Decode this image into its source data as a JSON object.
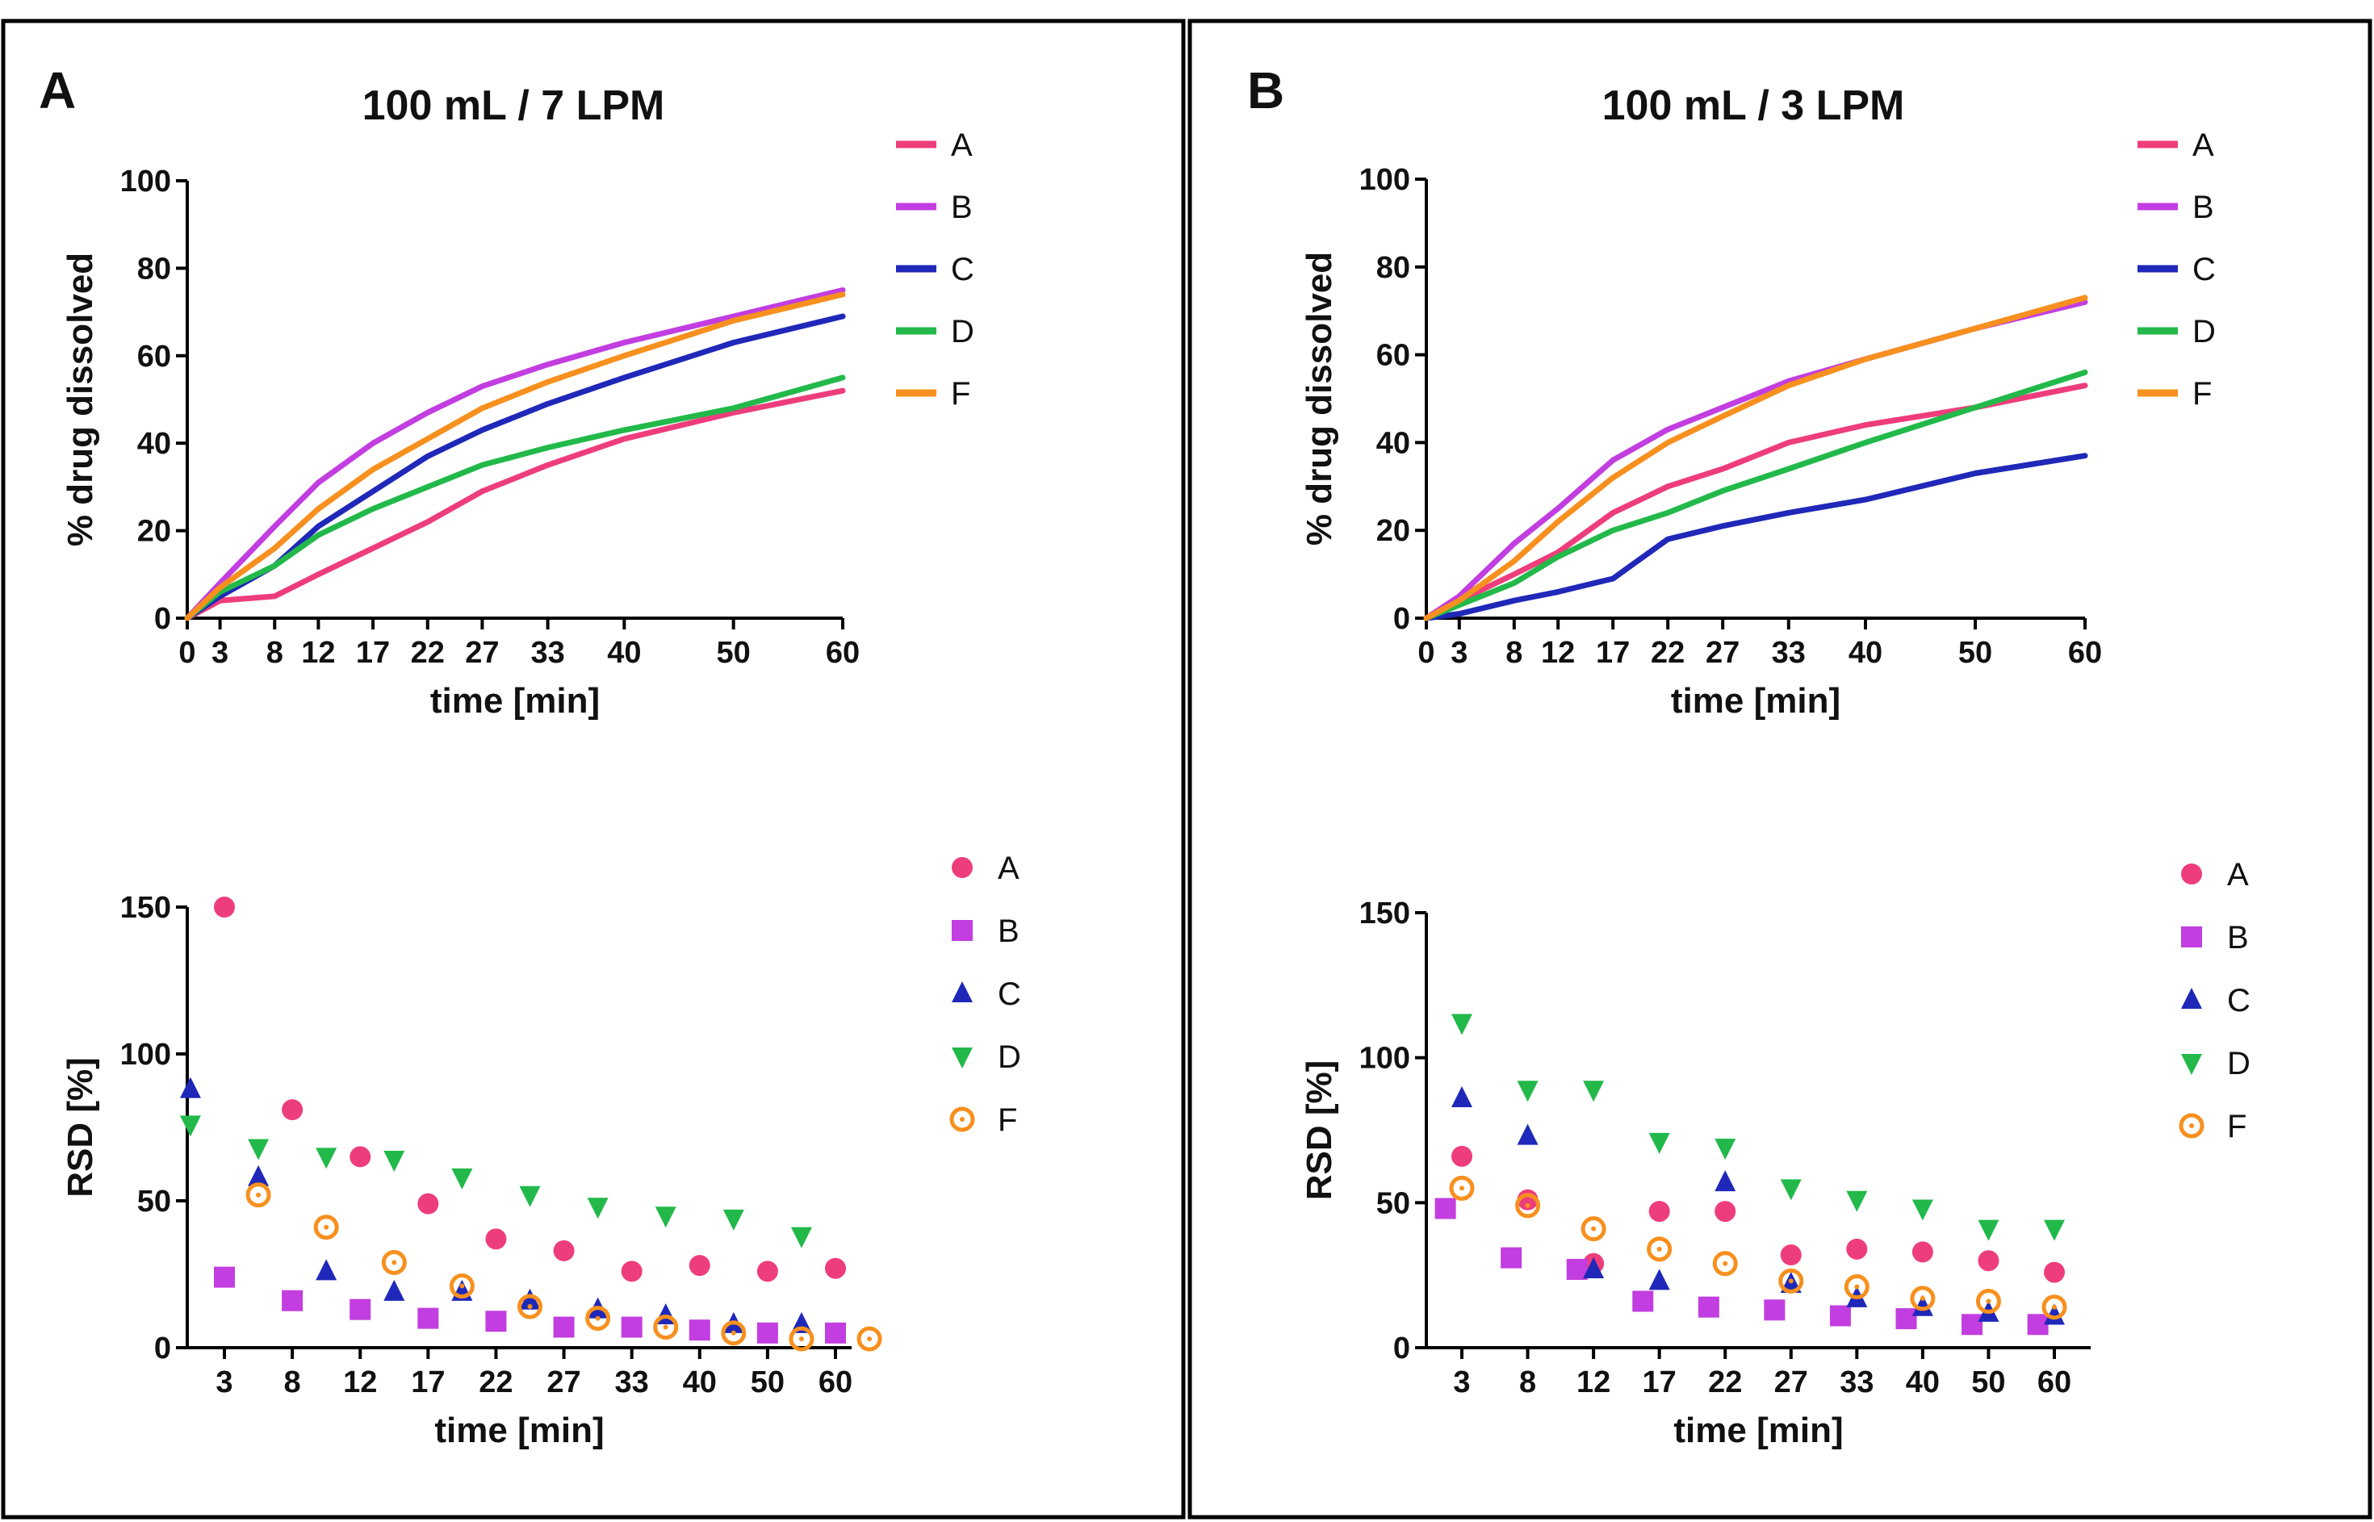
{
  "figure": {
    "panels": [
      {
        "letter": "A",
        "title": "100 mL / 7 LPM"
      },
      {
        "letter": "B",
        "title": "100 mL / 3 LPM"
      }
    ]
  },
  "colors": {
    "A": "#ee3d7c",
    "B": "#c23ee0",
    "C": "#1f28b8",
    "D": "#22b94a",
    "F": "#f7901e"
  },
  "markers": {
    "A": "circle",
    "B": "square",
    "C": "triangle-up",
    "D": "triangle-down",
    "F": "open-circle"
  },
  "chart_data": [
    {
      "panel": "A",
      "type": "line",
      "title": "100 mL / 7 LPM",
      "xlabel": "time [min]",
      "ylabel": "% drug dissolved",
      "xlim": [
        0,
        60
      ],
      "ylim": [
        0,
        100
      ],
      "xticks": [
        0,
        3,
        8,
        12,
        17,
        22,
        27,
        33,
        40,
        50,
        60
      ],
      "yticks": [
        0,
        20,
        40,
        60,
        80,
        100
      ],
      "x": [
        0,
        3,
        8,
        12,
        17,
        22,
        27,
        33,
        40,
        50,
        60
      ],
      "series": [
        {
          "name": "A",
          "values": [
            0,
            4,
            5,
            10,
            16,
            22,
            29,
            35,
            41,
            47,
            52
          ]
        },
        {
          "name": "B",
          "values": [
            0,
            8,
            21,
            31,
            40,
            47,
            53,
            58,
            63,
            69,
            75
          ]
        },
        {
          "name": "C",
          "values": [
            0,
            5,
            12,
            21,
            29,
            37,
            43,
            49,
            55,
            63,
            69
          ]
        },
        {
          "name": "D",
          "values": [
            0,
            6,
            12,
            19,
            25,
            30,
            35,
            39,
            43,
            48,
            55
          ]
        },
        {
          "name": "F",
          "values": [
            0,
            7,
            16,
            25,
            34,
            41,
            48,
            54,
            60,
            68,
            74
          ]
        }
      ],
      "legend": [
        "A",
        "B",
        "C",
        "D",
        "F"
      ],
      "legend_position": "top-right"
    },
    {
      "panel": "B",
      "type": "line",
      "title": "100 mL / 3 LPM",
      "xlabel": "time [min]",
      "ylabel": "% drug dissolved",
      "xlim": [
        0,
        60
      ],
      "ylim": [
        0,
        100
      ],
      "xticks": [
        0,
        3,
        8,
        12,
        17,
        22,
        27,
        33,
        40,
        50,
        60
      ],
      "yticks": [
        0,
        20,
        40,
        60,
        80,
        100
      ],
      "x": [
        0,
        3,
        8,
        12,
        17,
        22,
        27,
        33,
        40,
        50,
        60
      ],
      "series": [
        {
          "name": "A",
          "values": [
            0,
            4,
            10,
            15,
            24,
            30,
            34,
            40,
            44,
            48,
            53
          ]
        },
        {
          "name": "B",
          "values": [
            0,
            5,
            17,
            25,
            36,
            43,
            48,
            54,
            59,
            66,
            72
          ]
        },
        {
          "name": "C",
          "values": [
            0,
            1,
            4,
            6,
            9,
            18,
            21,
            24,
            27,
            33,
            37
          ]
        },
        {
          "name": "D",
          "values": [
            0,
            3,
            8,
            14,
            20,
            24,
            29,
            34,
            40,
            48,
            56
          ]
        },
        {
          "name": "F",
          "values": [
            0,
            4,
            13,
            22,
            32,
            40,
            46,
            53,
            59,
            66,
            73
          ]
        }
      ],
      "legend": [
        "A",
        "B",
        "C",
        "D",
        "F"
      ],
      "legend_position": "top-right"
    },
    {
      "panel": "A",
      "type": "scatter",
      "xlabel": "time [min]",
      "ylabel": "RSD [%]",
      "ylim": [
        0,
        150
      ],
      "yticks": [
        0,
        50,
        100,
        150
      ],
      "categories": [
        "3",
        "8",
        "12",
        "17",
        "22",
        "27",
        "33",
        "40",
        "50",
        "60"
      ],
      "series": [
        {
          "name": "A",
          "values": [
            150,
            81,
            65,
            49,
            37,
            33,
            26,
            28,
            26,
            27
          ]
        },
        {
          "name": "B",
          "values": [
            24,
            16,
            13,
            10,
            9,
            7,
            7,
            6,
            5,
            5
          ]
        },
        {
          "name": "C",
          "values": [
            88,
            58,
            26,
            19,
            19,
            16,
            13,
            11,
            8,
            8
          ]
        },
        {
          "name": "D",
          "values": [
            76,
            68,
            65,
            64,
            58,
            52,
            48,
            45,
            44,
            38
          ]
        },
        {
          "name": "F",
          "values": [
            52,
            41,
            29,
            21,
            14,
            10,
            7,
            5,
            3,
            3
          ]
        }
      ],
      "legend": [
        "A",
        "B",
        "C",
        "D",
        "F"
      ],
      "legend_position": "top-right"
    },
    {
      "panel": "B",
      "type": "scatter",
      "xlabel": "time [min]",
      "ylabel": "RSD [%]",
      "ylim": [
        0,
        150
      ],
      "yticks": [
        0,
        50,
        100,
        150
      ],
      "categories": [
        "3",
        "8",
        "12",
        "17",
        "22",
        "27",
        "33",
        "40",
        "50",
        "60"
      ],
      "series": [
        {
          "name": "A",
          "values": [
            66,
            51,
            29,
            47,
            47,
            32,
            34,
            33,
            30,
            26
          ]
        },
        {
          "name": "B",
          "values": [
            48,
            31,
            27,
            16,
            14,
            13,
            11,
            10,
            8,
            8
          ]
        },
        {
          "name": "C",
          "values": [
            86,
            73,
            27,
            23,
            57,
            22,
            17,
            14,
            12,
            11
          ]
        },
        {
          "name": "D",
          "values": [
            112,
            89,
            89,
            71,
            69,
            55,
            51,
            48,
            41,
            41
          ]
        },
        {
          "name": "F",
          "values": [
            55,
            49,
            41,
            34,
            29,
            23,
            21,
            17,
            16,
            14
          ]
        }
      ],
      "legend": [
        "A",
        "B",
        "C",
        "D",
        "F"
      ],
      "legend_position": "top-right"
    }
  ]
}
